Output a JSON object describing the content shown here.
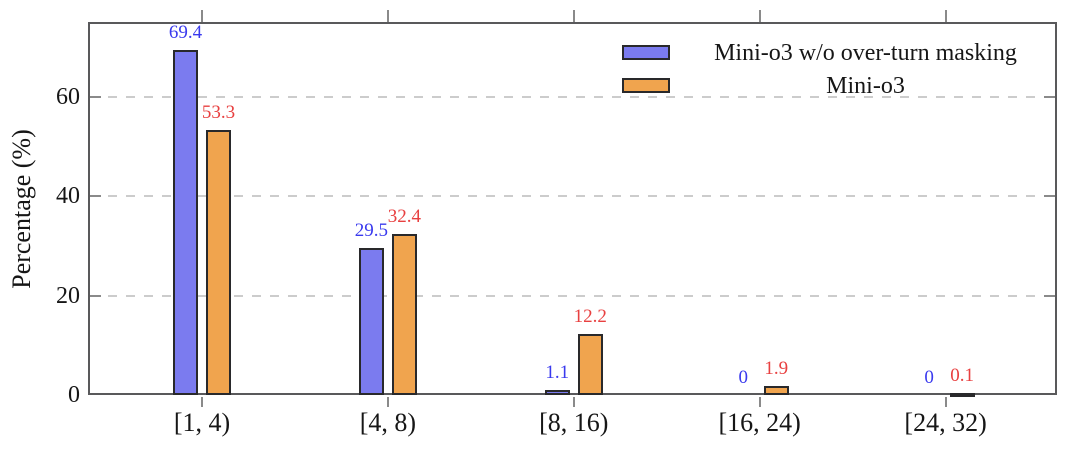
{
  "chart_data": {
    "type": "bar",
    "title": "",
    "xlabel": "",
    "ylabel": "Percentage (%)",
    "categories": [
      "[1, 4)",
      "[4, 8)",
      "[8, 16)",
      "[16, 24)",
      "[24, 32)"
    ],
    "series": [
      {
        "name": "Mini-o3 w/o over-turn masking",
        "color": "#7b7bef",
        "label_color": "#3a3aee",
        "values": [
          69.4,
          29.5,
          1.1,
          0,
          0
        ]
      },
      {
        "name": "Mini-o3",
        "color": "#f0a44e",
        "label_color": "#e84040",
        "values": [
          53.3,
          32.4,
          12.2,
          1.9,
          0.1
        ]
      }
    ],
    "yticks": [
      0,
      20,
      40,
      60
    ],
    "ylim": [
      0,
      75
    ],
    "grid": "horizontal dashed at yticks",
    "legend_position": "top-right inside plot, no frame",
    "value_labels": "above each bar, colored per series"
  }
}
